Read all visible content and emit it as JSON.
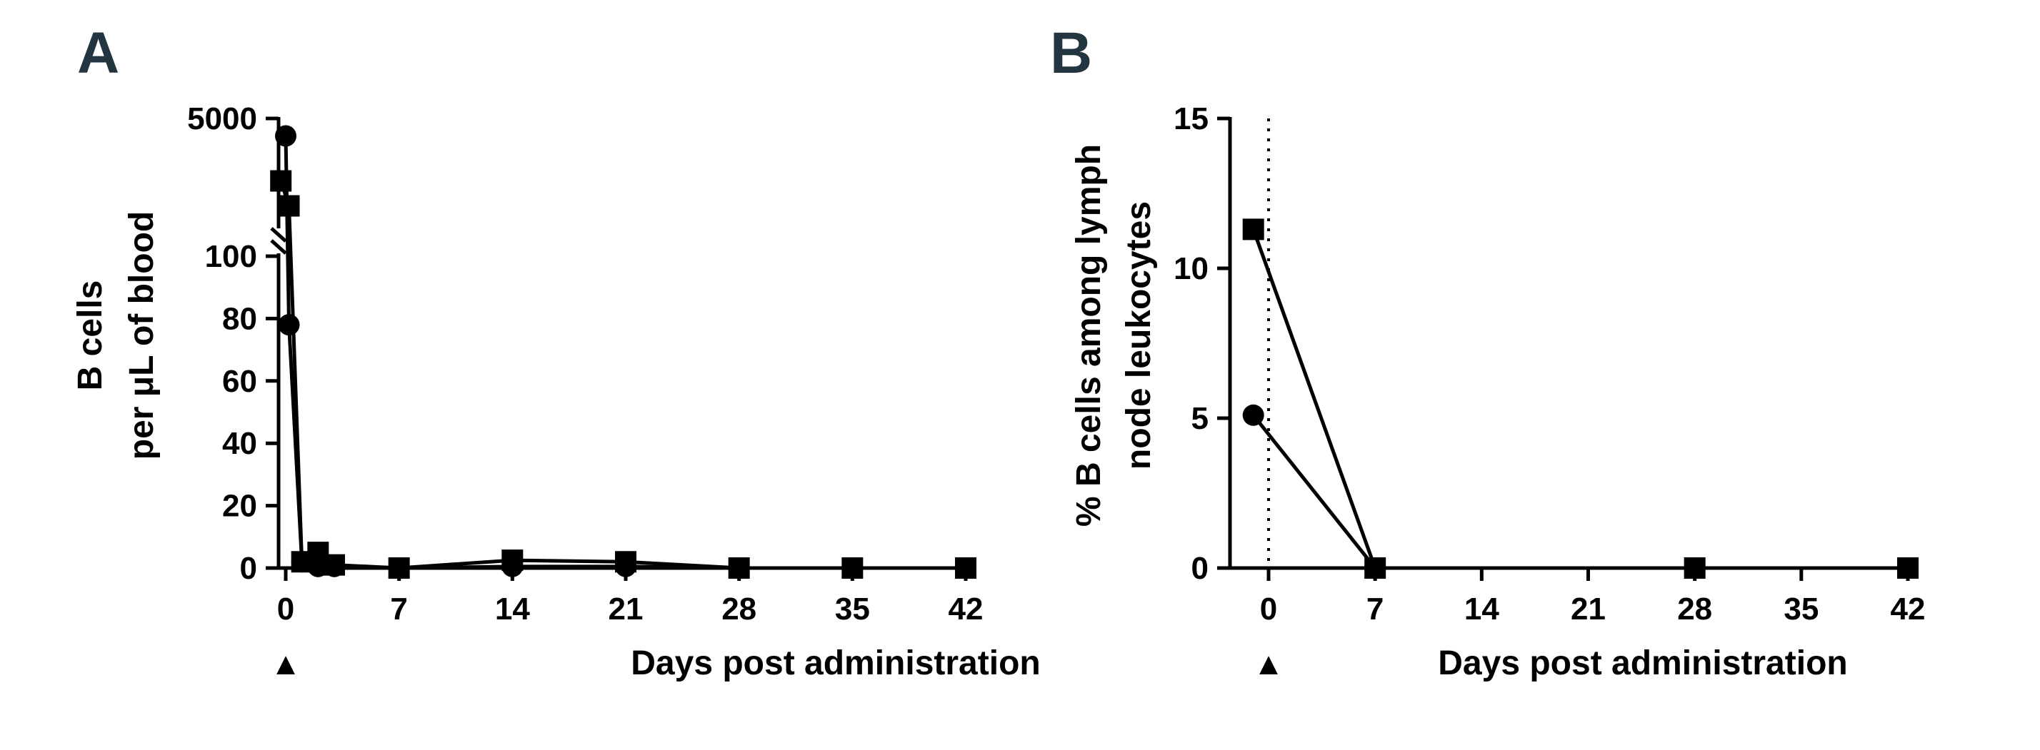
{
  "chart_data": [
    {
      "panel": "A",
      "type": "line",
      "xlabel": "Days post administration",
      "ylabel_lines": [
        "B cells",
        "per μL of blood"
      ],
      "x_ticks": [
        0,
        7,
        14,
        21,
        28,
        35,
        42
      ],
      "y_ticks_lower": [
        0,
        20,
        40,
        60,
        80,
        100
      ],
      "y_ticks_upper": [
        5000
      ],
      "ylim_lower": [
        0,
        100
      ],
      "y_axis_break": true,
      "administration_marker": "▲",
      "series": [
        {
          "marker": "circle",
          "x": [
            0,
            0.2,
            1,
            2,
            3,
            7,
            14,
            21,
            28,
            35,
            42
          ],
          "y": [
            4300,
            78,
            2,
            0.5,
            0.5,
            0,
            0.5,
            0.5,
            0,
            0,
            0
          ]
        },
        {
          "marker": "square",
          "x": [
            -0.3,
            0.2,
            1,
            2,
            3,
            7,
            14,
            21,
            28,
            35,
            42
          ],
          "y": [
            2500,
            1500,
            2,
            5,
            1,
            0,
            2.5,
            2,
            0,
            0,
            0
          ]
        }
      ]
    },
    {
      "panel": "B",
      "type": "line",
      "xlabel": "Days post administration",
      "ylabel_lines": [
        "% B cells among lymph",
        "node leukocytes"
      ],
      "x_ticks": [
        0,
        7,
        14,
        21,
        28,
        35,
        42
      ],
      "y_ticks": [
        0,
        5,
        10,
        15
      ],
      "ylim": [
        0,
        15
      ],
      "reference_line_x": 0,
      "administration_marker": "▲",
      "series": [
        {
          "marker": "circle",
          "x": [
            -1,
            7
          ],
          "y": [
            5.1,
            0
          ]
        },
        {
          "marker": "square",
          "x": [
            -1,
            7,
            28,
            42
          ],
          "y": [
            11.3,
            0,
            0,
            0
          ]
        }
      ]
    }
  ]
}
